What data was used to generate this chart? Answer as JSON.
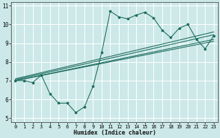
{
  "title": "",
  "xlabel": "Humidex (Indice chaleur)",
  "ylabel": "",
  "bg_color": "#cce8e8",
  "grid_color": "#ffffff",
  "line_color": "#1a6b5e",
  "xlim": [
    -0.5,
    23.5
  ],
  "ylim": [
    4.8,
    11.2
  ],
  "xticks": [
    0,
    1,
    2,
    3,
    4,
    5,
    6,
    7,
    8,
    9,
    10,
    11,
    12,
    13,
    14,
    15,
    16,
    17,
    18,
    19,
    20,
    21,
    22,
    23
  ],
  "yticks": [
    5,
    6,
    7,
    8,
    9,
    10,
    11
  ],
  "main_line": {
    "x": [
      0,
      1,
      2,
      3,
      4,
      5,
      6,
      7,
      8,
      9,
      10,
      11,
      12,
      13,
      14,
      15,
      16,
      17,
      18,
      19,
      20,
      21,
      22,
      23
    ],
    "y": [
      7.0,
      7.0,
      6.9,
      7.3,
      6.3,
      5.8,
      5.8,
      5.3,
      5.6,
      6.7,
      8.5,
      10.7,
      10.4,
      10.3,
      10.5,
      10.65,
      10.35,
      9.7,
      9.3,
      9.8,
      10.0,
      9.2,
      8.7,
      9.4
    ]
  },
  "trend_lines": [
    {
      "x": [
        0,
        23
      ],
      "y": [
        7.0,
        9.1
      ]
    },
    {
      "x": [
        0,
        23
      ],
      "y": [
        7.0,
        9.2
      ]
    },
    {
      "x": [
        0,
        23
      ],
      "y": [
        7.05,
        9.45
      ]
    },
    {
      "x": [
        0,
        23
      ],
      "y": [
        7.1,
        9.6
      ]
    }
  ]
}
